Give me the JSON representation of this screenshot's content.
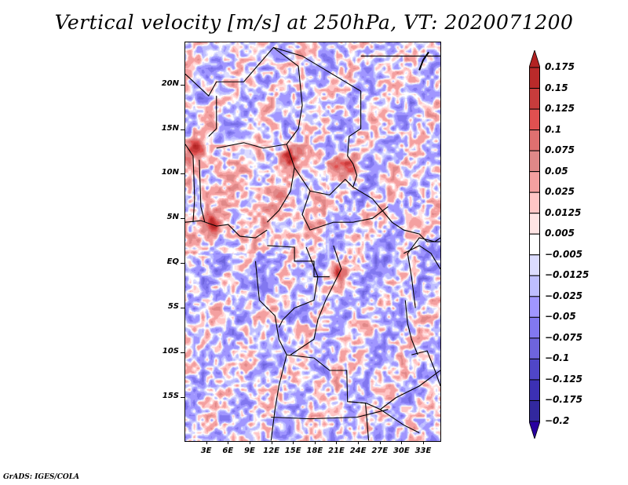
{
  "title": "Vertical velocity [m/s] at 250hPa, VT: 2020071200",
  "footer": "GrADS: IGES/COLA",
  "map": {
    "variable": "Vertical velocity",
    "units": "m/s",
    "level": "250hPa",
    "valid_time": "2020071200",
    "lon_range": [
      0,
      35.5
    ],
    "lat_range": [
      -20,
      24.8
    ],
    "lat_labels": [
      {
        "lat": 20,
        "label": "20N"
      },
      {
        "lat": 15,
        "label": "15N"
      },
      {
        "lat": 10,
        "label": "10N"
      },
      {
        "lat": 5,
        "label": "5N"
      },
      {
        "lat": 0,
        "label": "EQ"
      },
      {
        "lat": -5,
        "label": "5S"
      },
      {
        "lat": -10,
        "label": "10S"
      },
      {
        "lat": -15,
        "label": "15S"
      }
    ],
    "lon_labels": [
      {
        "lon": 3,
        "label": "3E"
      },
      {
        "lon": 6,
        "label": "6E"
      },
      {
        "lon": 9,
        "label": "9E"
      },
      {
        "lon": 12,
        "label": "12E"
      },
      {
        "lon": 15,
        "label": "15E"
      },
      {
        "lon": 18,
        "label": "18E"
      },
      {
        "lon": 21,
        "label": "21E"
      },
      {
        "lon": 24,
        "label": "24E"
      },
      {
        "lon": 27,
        "label": "27E"
      },
      {
        "lon": 30,
        "label": "30E"
      },
      {
        "lon": 33,
        "label": "33E"
      }
    ],
    "features": [
      {
        "name": "strong-ascent-west-africa",
        "lon": 1.5,
        "lat": 13,
        "sign": "positive"
      },
      {
        "name": "strong-ascent-chad-lake",
        "lon": 14.5,
        "lat": 12,
        "sign": "positive"
      },
      {
        "name": "strong-ascent-central-africa",
        "lon": 21,
        "lat": 11,
        "sign": "positive"
      },
      {
        "name": "strong-ascent-sudan",
        "lon": 23,
        "lat": 11,
        "sign": "positive"
      },
      {
        "name": "convective-cluster-congo",
        "lon": 21.5,
        "lat": -1,
        "sign": "positive"
      },
      {
        "name": "gulf-of-guinea-ascent",
        "lon": 4,
        "lat": 4.5,
        "sign": "positive"
      }
    ]
  },
  "colorbar": {
    "levels": [
      "0.175",
      "0.15",
      "0.125",
      "0.1",
      "0.075",
      "0.05",
      "0.025",
      "0.0125",
      "0.005",
      "−0.005",
      "−0.0125",
      "−0.025",
      "−0.05",
      "−0.075",
      "−0.1",
      "−0.125",
      "−0.175",
      "−0.2"
    ],
    "colors": [
      "#b22222",
      "#ba2a2a",
      "#c83c3c",
      "#e05050",
      "#e07070",
      "#e08888",
      "#f4a0a0",
      "#ffc6c6",
      "#ffe4e4",
      "#ffffff",
      "#dcdcff",
      "#bebeff",
      "#a096ff",
      "#8278f0",
      "#6e64dc",
      "#5046c8",
      "#3c30b4",
      "#32289e",
      "#2814a0"
    ],
    "top_arrow_color": "#b22222",
    "bottom_arrow_color": "#2800a0"
  }
}
